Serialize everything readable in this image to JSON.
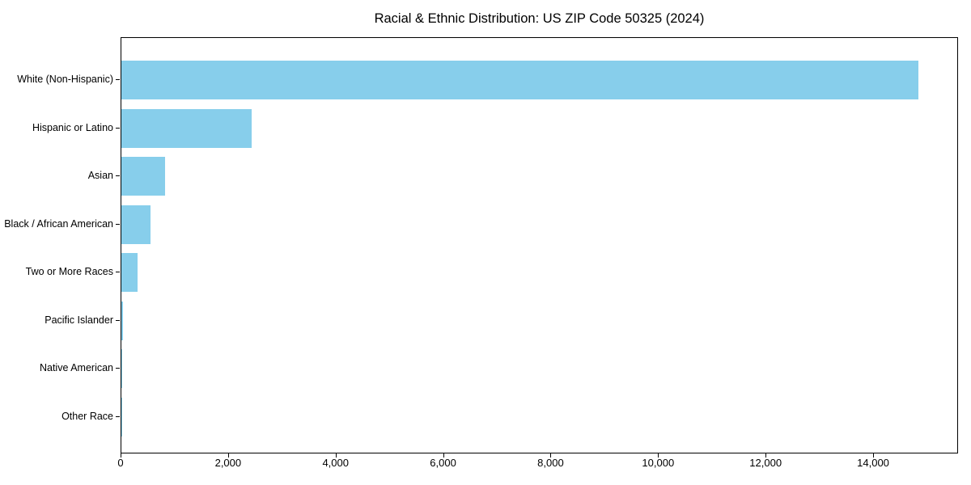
{
  "title": "Racial & Ethnic Distribution: US ZIP Code 50325 (2024)",
  "chart_data": {
    "type": "bar",
    "orientation": "horizontal",
    "title": "Racial & Ethnic Distribution: US ZIP Code 50325 (2024)",
    "categories": [
      "White (Non-Hispanic)",
      "Hispanic or Latino",
      "Asian",
      "Black / African American",
      "Two or More Races",
      "Pacific Islander",
      "Native American",
      "Other Race"
    ],
    "values": [
      14850,
      2430,
      810,
      540,
      305,
      25,
      20,
      10
    ],
    "xlabel": "",
    "ylabel": "",
    "xlim": [
      0,
      15580
    ],
    "xticks": [
      0,
      2000,
      4000,
      6000,
      8000,
      10000,
      12000,
      14000
    ],
    "xtick_labels": [
      "0",
      "2,000",
      "4,000",
      "6,000",
      "8,000",
      "10,000",
      "12,000",
      "14,000"
    ],
    "bar_color": "#87ceeb",
    "axis_color": "#000000",
    "grid": false,
    "legend": "none"
  }
}
